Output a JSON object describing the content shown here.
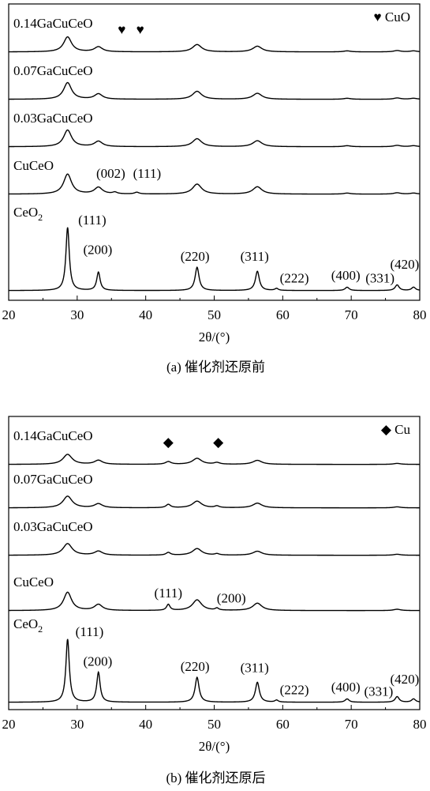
{
  "chart_data": [
    {
      "type": "line",
      "caption": "(a) 催化剂还原前",
      "xlabel": "2θ/(°)",
      "ylabel": "",
      "xlim": [
        20,
        80
      ],
      "xticks": [
        20,
        30,
        40,
        50,
        60,
        70,
        80
      ],
      "legend": {
        "marker": "♥",
        "text": "CuO",
        "placement": "top-right"
      },
      "series": [
        {
          "name": "0.14GaCuCeO",
          "offset": 4,
          "scale": 0.055,
          "peaks": [
            [
              28.6,
              0.45,
              0.7
            ],
            [
              33.1,
              0.15,
              0.7
            ],
            [
              47.5,
              0.22,
              0.8
            ],
            [
              56.3,
              0.17,
              0.8
            ],
            [
              69.4,
              0.03,
              0.6
            ],
            [
              76.7,
              0.04,
              0.6
            ],
            [
              79.1,
              0.03,
              0.6
            ]
          ],
          "markers": [
            {
              "symbol": "♥",
              "x": 36.5
            },
            {
              "symbol": "♥",
              "x": 39.2
            }
          ]
        },
        {
          "name": "0.07GaCuCeO",
          "offset": 3,
          "scale": 0.055,
          "peaks": [
            [
              28.6,
              0.5,
              0.7
            ],
            [
              33.1,
              0.16,
              0.7
            ],
            [
              47.5,
              0.24,
              0.8
            ],
            [
              56.3,
              0.18,
              0.8
            ],
            [
              69.4,
              0.03,
              0.6
            ],
            [
              76.7,
              0.04,
              0.6
            ],
            [
              79.1,
              0.03,
              0.6
            ]
          ],
          "markers": []
        },
        {
          "name": "0.03GaCuCeO",
          "offset": 2,
          "scale": 0.055,
          "peaks": [
            [
              28.6,
              0.5,
              0.7
            ],
            [
              33.1,
              0.16,
              0.7
            ],
            [
              47.5,
              0.24,
              0.8
            ],
            [
              56.3,
              0.18,
              0.8
            ],
            [
              69.4,
              0.03,
              0.6
            ],
            [
              76.7,
              0.04,
              0.6
            ],
            [
              79.1,
              0.03,
              0.6
            ]
          ],
          "markers": []
        },
        {
          "name": "CuCeO",
          "offset": 1,
          "scale": 0.055,
          "peaks": [
            [
              28.6,
              0.6,
              0.7
            ],
            [
              33.1,
              0.2,
              0.7
            ],
            [
              35.5,
              0.05,
              0.4
            ],
            [
              38.7,
              0.05,
              0.4
            ],
            [
              47.5,
              0.3,
              0.8
            ],
            [
              56.3,
              0.22,
              0.8
            ],
            [
              69.4,
              0.03,
              0.6
            ],
            [
              76.7,
              0.04,
              0.6
            ],
            [
              79.1,
              0.03,
              0.6
            ]
          ],
          "markers": []
        },
        {
          "name": "CeO",
          "name_sub": "2",
          "offset": 0,
          "scale": 0.055,
          "peaks": [
            [
              28.6,
              1.9,
              0.3
            ],
            [
              33.1,
              0.55,
              0.3
            ],
            [
              47.5,
              0.7,
              0.35
            ],
            [
              56.3,
              0.58,
              0.35
            ],
            [
              59.1,
              0.06,
              0.3
            ],
            [
              69.4,
              0.1,
              0.35
            ],
            [
              76.7,
              0.17,
              0.35
            ],
            [
              79.1,
              0.1,
              0.35
            ]
          ],
          "markers": []
        }
      ],
      "annotations": [
        {
          "text": "(002)",
          "x": 34.9,
          "series": 3,
          "h": 0.55
        },
        {
          "text": "(111)",
          "x": 40.2,
          "series": 3,
          "h": 0.55
        },
        {
          "text": "(111)",
          "x": 32.2,
          "series": 4,
          "h": 2.05
        },
        {
          "text": "(200)",
          "x": 33.0,
          "series": 4,
          "h": 1.15
        },
        {
          "text": "(220)",
          "x": 47.2,
          "series": 4,
          "h": 0.95
        },
        {
          "text": "(311)",
          "x": 55.9,
          "series": 4,
          "h": 0.95
        },
        {
          "text": "(222)",
          "x": 61.7,
          "series": 4,
          "h": 0.3
        },
        {
          "text": "(400)",
          "x": 69.2,
          "series": 4,
          "h": 0.38
        },
        {
          "text": "(331)",
          "x": 74.2,
          "series": 4,
          "h": 0.3
        },
        {
          "text": "(420)",
          "x": 77.8,
          "series": 4,
          "h": 0.72
        }
      ]
    },
    {
      "type": "line",
      "caption": "(b) 催化剂还原后",
      "xlabel": "2θ/(°)",
      "ylabel": "",
      "xlim": [
        20,
        80
      ],
      "xticks": [
        20,
        30,
        40,
        50,
        60,
        70,
        80
      ],
      "legend": {
        "marker": "◆",
        "text": "Cu",
        "placement": "top-right"
      },
      "series": [
        {
          "name": "0.14GaCuCeO",
          "offset": 4,
          "scale": 0.055,
          "peaks": [
            [
              28.6,
              0.3,
              0.8
            ],
            [
              33.1,
              0.12,
              0.7
            ],
            [
              43.3,
              0.08,
              0.5
            ],
            [
              47.5,
              0.18,
              0.8
            ],
            [
              50.4,
              0.05,
              0.5
            ],
            [
              56.3,
              0.12,
              0.8
            ],
            [
              76.7,
              0.03,
              0.6
            ]
          ],
          "markers": [
            {
              "symbol": "◆",
              "x": 43.3
            },
            {
              "symbol": "◆",
              "x": 50.6
            }
          ]
        },
        {
          "name": "0.07GaCuCeO",
          "offset": 3,
          "scale": 0.055,
          "peaks": [
            [
              28.6,
              0.35,
              0.8
            ],
            [
              33.1,
              0.12,
              0.7
            ],
            [
              43.3,
              0.1,
              0.4
            ],
            [
              47.5,
              0.2,
              0.8
            ],
            [
              50.4,
              0.05,
              0.4
            ],
            [
              56.3,
              0.14,
              0.8
            ],
            [
              76.7,
              0.03,
              0.6
            ]
          ],
          "markers": []
        },
        {
          "name": "0.03GaCuCeO",
          "offset": 2,
          "scale": 0.055,
          "peaks": [
            [
              28.6,
              0.35,
              0.8
            ],
            [
              33.1,
              0.12,
              0.7
            ],
            [
              43.3,
              0.08,
              0.4
            ],
            [
              47.5,
              0.2,
              0.8
            ],
            [
              50.4,
              0.04,
              0.4
            ],
            [
              56.3,
              0.12,
              0.8
            ],
            [
              76.7,
              0.03,
              0.6
            ]
          ],
          "markers": []
        },
        {
          "name": "CuCeO",
          "offset": 1,
          "scale": 0.055,
          "peaks": [
            [
              28.6,
              0.55,
              0.7
            ],
            [
              33.1,
              0.18,
              0.7
            ],
            [
              43.3,
              0.18,
              0.3
            ],
            [
              47.5,
              0.32,
              0.8
            ],
            [
              50.4,
              0.06,
              0.3
            ],
            [
              56.3,
              0.22,
              0.8
            ],
            [
              76.7,
              0.04,
              0.6
            ]
          ],
          "markers": []
        },
        {
          "name": "CeO",
          "name_sub": "2",
          "offset": 0,
          "scale": 0.055,
          "peaks": [
            [
              28.6,
              1.9,
              0.3
            ],
            [
              33.1,
              0.9,
              0.3
            ],
            [
              47.5,
              0.75,
              0.35
            ],
            [
              56.3,
              0.6,
              0.35
            ],
            [
              59.1,
              0.06,
              0.3
            ],
            [
              69.4,
              0.1,
              0.35
            ],
            [
              76.7,
              0.17,
              0.35
            ],
            [
              79.1,
              0.1,
              0.35
            ]
          ],
          "markers": []
        }
      ],
      "annotations": [
        {
          "text": "(111)",
          "x": 43.3,
          "series": 3,
          "h": 0.45
        },
        {
          "text": "(200)",
          "x": 52.5,
          "series": 3,
          "h": 0.3
        },
        {
          "text": "(111)",
          "x": 31.8,
          "series": 4,
          "h": 2.05
        },
        {
          "text": "(200)",
          "x": 33.0,
          "series": 4,
          "h": 1.15
        },
        {
          "text": "(220)",
          "x": 47.2,
          "series": 4,
          "h": 1.0
        },
        {
          "text": "(311)",
          "x": 55.9,
          "series": 4,
          "h": 0.97
        },
        {
          "text": "(222)",
          "x": 61.7,
          "series": 4,
          "h": 0.3
        },
        {
          "text": "(400)",
          "x": 69.2,
          "series": 4,
          "h": 0.38
        },
        {
          "text": "(331)",
          "x": 74.0,
          "series": 4,
          "h": 0.25
        },
        {
          "text": "(420)",
          "x": 77.8,
          "series": 4,
          "h": 0.62
        }
      ]
    }
  ]
}
